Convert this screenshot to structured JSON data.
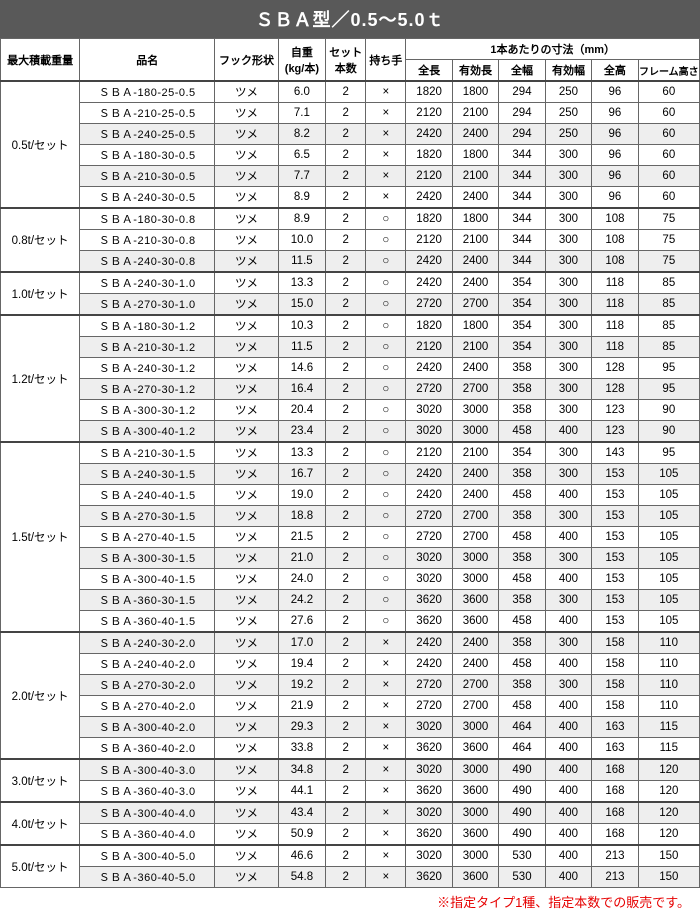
{
  "title": "ＳＢＡ型／0.5～5.0ｔ",
  "note": "※指定タイプ1種、指定本数での販売です。",
  "headers": {
    "capacity": "最大積載重量",
    "name": "品名",
    "hook": "フック形状",
    "weight_top": "自重",
    "weight_bottom": "(kg/本)",
    "sets_top": "セット",
    "sets_bottom": "本数",
    "hold": "持ち手",
    "dim_group": "1本あたりの寸法（mm）",
    "dim": [
      "全長",
      "有効長",
      "全幅",
      "有効幅",
      "全高",
      "フレーム高さ"
    ]
  },
  "groups": [
    {
      "capacity": "0.5t/セット",
      "start": 0,
      "count": 6
    },
    {
      "capacity": "0.8t/セット",
      "start": 6,
      "count": 3
    },
    {
      "capacity": "1.0t/セット",
      "start": 9,
      "count": 2
    },
    {
      "capacity": "1.2t/セット",
      "start": 11,
      "count": 6
    },
    {
      "capacity": "1.5t/セット",
      "start": 17,
      "count": 9
    },
    {
      "capacity": "2.0t/セット",
      "start": 26,
      "count": 6
    },
    {
      "capacity": "3.0t/セット",
      "start": 32,
      "count": 2
    },
    {
      "capacity": "4.0t/セット",
      "start": 34,
      "count": 2
    },
    {
      "capacity": "5.0t/セット",
      "start": 36,
      "count": 2
    }
  ],
  "rows": [
    {
      "name": "ＳＢＡ-180-25-0.5",
      "hook": "ツメ",
      "weight": "6.0",
      "sets": "2",
      "hold": "×",
      "d": [
        "1820",
        "1800",
        "294",
        "250",
        "96",
        "60"
      ],
      "gray": false
    },
    {
      "name": "ＳＢＡ-210-25-0.5",
      "hook": "ツメ",
      "weight": "7.1",
      "sets": "2",
      "hold": "×",
      "d": [
        "2120",
        "2100",
        "294",
        "250",
        "96",
        "60"
      ],
      "gray": false
    },
    {
      "name": "ＳＢＡ-240-25-0.5",
      "hook": "ツメ",
      "weight": "8.2",
      "sets": "2",
      "hold": "×",
      "d": [
        "2420",
        "2400",
        "294",
        "250",
        "96",
        "60"
      ],
      "gray": true
    },
    {
      "name": "ＳＢＡ-180-30-0.5",
      "hook": "ツメ",
      "weight": "6.5",
      "sets": "2",
      "hold": "×",
      "d": [
        "1820",
        "1800",
        "344",
        "300",
        "96",
        "60"
      ],
      "gray": false
    },
    {
      "name": "ＳＢＡ-210-30-0.5",
      "hook": "ツメ",
      "weight": "7.7",
      "sets": "2",
      "hold": "×",
      "d": [
        "2120",
        "2100",
        "344",
        "300",
        "96",
        "60"
      ],
      "gray": true
    },
    {
      "name": "ＳＢＡ-240-30-0.5",
      "hook": "ツメ",
      "weight": "8.9",
      "sets": "2",
      "hold": "×",
      "d": [
        "2420",
        "2400",
        "344",
        "300",
        "96",
        "60"
      ],
      "gray": false
    },
    {
      "name": "ＳＢＡ-180-30-0.8",
      "hook": "ツメ",
      "weight": "8.9",
      "sets": "2",
      "hold": "○",
      "d": [
        "1820",
        "1800",
        "344",
        "300",
        "108",
        "75"
      ],
      "gray": false
    },
    {
      "name": "ＳＢＡ-210-30-0.8",
      "hook": "ツメ",
      "weight": "10.0",
      "sets": "2",
      "hold": "○",
      "d": [
        "2120",
        "2100",
        "344",
        "300",
        "108",
        "75"
      ],
      "gray": false
    },
    {
      "name": "ＳＢＡ-240-30-0.8",
      "hook": "ツメ",
      "weight": "11.5",
      "sets": "2",
      "hold": "○",
      "d": [
        "2420",
        "2400",
        "344",
        "300",
        "108",
        "75"
      ],
      "gray": true
    },
    {
      "name": "ＳＢＡ-240-30-1.0",
      "hook": "ツメ",
      "weight": "13.3",
      "sets": "2",
      "hold": "○",
      "d": [
        "2420",
        "2400",
        "354",
        "300",
        "118",
        "85"
      ],
      "gray": false
    },
    {
      "name": "ＳＢＡ-270-30-1.0",
      "hook": "ツメ",
      "weight": "15.0",
      "sets": "2",
      "hold": "○",
      "d": [
        "2720",
        "2700",
        "354",
        "300",
        "118",
        "85"
      ],
      "gray": true
    },
    {
      "name": "ＳＢＡ-180-30-1.2",
      "hook": "ツメ",
      "weight": "10.3",
      "sets": "2",
      "hold": "○",
      "d": [
        "1820",
        "1800",
        "354",
        "300",
        "118",
        "85"
      ],
      "gray": false
    },
    {
      "name": "ＳＢＡ-210-30-1.2",
      "hook": "ツメ",
      "weight": "11.5",
      "sets": "2",
      "hold": "○",
      "d": [
        "2120",
        "2100",
        "354",
        "300",
        "118",
        "85"
      ],
      "gray": true
    },
    {
      "name": "ＳＢＡ-240-30-1.2",
      "hook": "ツメ",
      "weight": "14.6",
      "sets": "2",
      "hold": "○",
      "d": [
        "2420",
        "2400",
        "358",
        "300",
        "128",
        "95"
      ],
      "gray": false
    },
    {
      "name": "ＳＢＡ-270-30-1.2",
      "hook": "ツメ",
      "weight": "16.4",
      "sets": "2",
      "hold": "○",
      "d": [
        "2720",
        "2700",
        "358",
        "300",
        "128",
        "95"
      ],
      "gray": true
    },
    {
      "name": "ＳＢＡ-300-30-1.2",
      "hook": "ツメ",
      "weight": "20.4",
      "sets": "2",
      "hold": "○",
      "d": [
        "3020",
        "3000",
        "358",
        "300",
        "123",
        "90"
      ],
      "gray": false
    },
    {
      "name": "ＳＢＡ-300-40-1.2",
      "hook": "ツメ",
      "weight": "23.4",
      "sets": "2",
      "hold": "○",
      "d": [
        "3020",
        "3000",
        "458",
        "400",
        "123",
        "90"
      ],
      "gray": true
    },
    {
      "name": "ＳＢＡ-210-30-1.5",
      "hook": "ツメ",
      "weight": "13.3",
      "sets": "2",
      "hold": "○",
      "d": [
        "2120",
        "2100",
        "354",
        "300",
        "143",
        "95"
      ],
      "gray": false
    },
    {
      "name": "ＳＢＡ-240-30-1.5",
      "hook": "ツメ",
      "weight": "16.7",
      "sets": "2",
      "hold": "○",
      "d": [
        "2420",
        "2400",
        "358",
        "300",
        "153",
        "105"
      ],
      "gray": true
    },
    {
      "name": "ＳＢＡ-240-40-1.5",
      "hook": "ツメ",
      "weight": "19.0",
      "sets": "2",
      "hold": "○",
      "d": [
        "2420",
        "2400",
        "458",
        "400",
        "153",
        "105"
      ],
      "gray": false
    },
    {
      "name": "ＳＢＡ-270-30-1.5",
      "hook": "ツメ",
      "weight": "18.8",
      "sets": "2",
      "hold": "○",
      "d": [
        "2720",
        "2700",
        "358",
        "300",
        "153",
        "105"
      ],
      "gray": true
    },
    {
      "name": "ＳＢＡ-270-40-1.5",
      "hook": "ツメ",
      "weight": "21.5",
      "sets": "2",
      "hold": "○",
      "d": [
        "2720",
        "2700",
        "458",
        "400",
        "153",
        "105"
      ],
      "gray": false
    },
    {
      "name": "ＳＢＡ-300-30-1.5",
      "hook": "ツメ",
      "weight": "21.0",
      "sets": "2",
      "hold": "○",
      "d": [
        "3020",
        "3000",
        "358",
        "300",
        "153",
        "105"
      ],
      "gray": true
    },
    {
      "name": "ＳＢＡ-300-40-1.5",
      "hook": "ツメ",
      "weight": "24.0",
      "sets": "2",
      "hold": "○",
      "d": [
        "3020",
        "3000",
        "458",
        "400",
        "153",
        "105"
      ],
      "gray": false
    },
    {
      "name": "ＳＢＡ-360-30-1.5",
      "hook": "ツメ",
      "weight": "24.2",
      "sets": "2",
      "hold": "○",
      "d": [
        "3620",
        "3600",
        "358",
        "300",
        "153",
        "105"
      ],
      "gray": true
    },
    {
      "name": "ＳＢＡ-360-40-1.5",
      "hook": "ツメ",
      "weight": "27.6",
      "sets": "2",
      "hold": "○",
      "d": [
        "3620",
        "3600",
        "458",
        "400",
        "153",
        "105"
      ],
      "gray": false
    },
    {
      "name": "ＳＢＡ-240-30-2.0",
      "hook": "ツメ",
      "weight": "17.0",
      "sets": "2",
      "hold": "×",
      "d": [
        "2420",
        "2400",
        "358",
        "300",
        "158",
        "110"
      ],
      "gray": true
    },
    {
      "name": "ＳＢＡ-240-40-2.0",
      "hook": "ツメ",
      "weight": "19.4",
      "sets": "2",
      "hold": "×",
      "d": [
        "2420",
        "2400",
        "458",
        "400",
        "158",
        "110"
      ],
      "gray": false
    },
    {
      "name": "ＳＢＡ-270-30-2.0",
      "hook": "ツメ",
      "weight": "19.2",
      "sets": "2",
      "hold": "×",
      "d": [
        "2720",
        "2700",
        "358",
        "300",
        "158",
        "110"
      ],
      "gray": true
    },
    {
      "name": "ＳＢＡ-270-40-2.0",
      "hook": "ツメ",
      "weight": "21.9",
      "sets": "2",
      "hold": "×",
      "d": [
        "2720",
        "2700",
        "458",
        "400",
        "158",
        "110"
      ],
      "gray": false
    },
    {
      "name": "ＳＢＡ-300-40-2.0",
      "hook": "ツメ",
      "weight": "29.3",
      "sets": "2",
      "hold": "×",
      "d": [
        "3020",
        "3000",
        "464",
        "400",
        "163",
        "115"
      ],
      "gray": true
    },
    {
      "name": "ＳＢＡ-360-40-2.0",
      "hook": "ツメ",
      "weight": "33.8",
      "sets": "2",
      "hold": "×",
      "d": [
        "3620",
        "3600",
        "464",
        "400",
        "163",
        "115"
      ],
      "gray": false
    },
    {
      "name": "ＳＢＡ-300-40-3.0",
      "hook": "ツメ",
      "weight": "34.8",
      "sets": "2",
      "hold": "×",
      "d": [
        "3020",
        "3000",
        "490",
        "400",
        "168",
        "120"
      ],
      "gray": true
    },
    {
      "name": "ＳＢＡ-360-40-3.0",
      "hook": "ツメ",
      "weight": "44.1",
      "sets": "2",
      "hold": "×",
      "d": [
        "3620",
        "3600",
        "490",
        "400",
        "168",
        "120"
      ],
      "gray": false
    },
    {
      "name": "ＳＢＡ-300-40-4.0",
      "hook": "ツメ",
      "weight": "43.4",
      "sets": "2",
      "hold": "×",
      "d": [
        "3020",
        "3000",
        "490",
        "400",
        "168",
        "120"
      ],
      "gray": true
    },
    {
      "name": "ＳＢＡ-360-40-4.0",
      "hook": "ツメ",
      "weight": "50.9",
      "sets": "2",
      "hold": "×",
      "d": [
        "3620",
        "3600",
        "490",
        "400",
        "168",
        "120"
      ],
      "gray": false
    },
    {
      "name": "ＳＢＡ-300-40-5.0",
      "hook": "ツメ",
      "weight": "46.6",
      "sets": "2",
      "hold": "×",
      "d": [
        "3020",
        "3000",
        "530",
        "400",
        "213",
        "150"
      ],
      "gray": false
    },
    {
      "name": "ＳＢＡ-360-40-5.0",
      "hook": "ツメ",
      "weight": "54.8",
      "sets": "2",
      "hold": "×",
      "d": [
        "3620",
        "3600",
        "530",
        "400",
        "213",
        "150"
      ],
      "gray": true
    }
  ]
}
